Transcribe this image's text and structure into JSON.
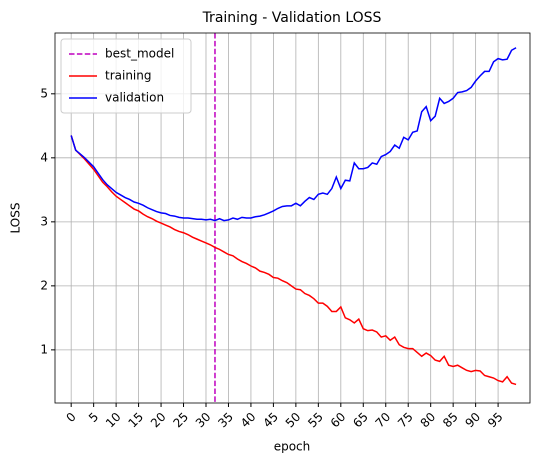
{
  "chart_data": {
    "type": "line",
    "title": "Training - Validation LOSS",
    "xlabel": "epoch",
    "ylabel": "LOSS",
    "x": [
      0,
      1,
      2,
      3,
      4,
      5,
      6,
      7,
      8,
      9,
      10,
      11,
      12,
      13,
      14,
      15,
      16,
      17,
      18,
      19,
      20,
      21,
      22,
      23,
      24,
      25,
      26,
      27,
      28,
      29,
      30,
      31,
      32,
      33,
      34,
      35,
      36,
      37,
      38,
      39,
      40,
      41,
      42,
      43,
      44,
      45,
      46,
      47,
      48,
      49,
      50,
      51,
      52,
      53,
      54,
      55,
      56,
      57,
      58,
      59,
      60,
      61,
      62,
      63,
      64,
      65,
      66,
      67,
      68,
      69,
      70,
      71,
      72,
      73,
      74,
      75,
      76,
      77,
      78,
      79,
      80,
      81,
      82,
      83,
      84,
      85,
      86,
      87,
      88,
      89,
      90,
      91,
      92,
      93,
      94,
      95,
      96,
      97,
      98,
      99
    ],
    "vlines": [
      {
        "name": "best_model",
        "x": 32,
        "color": "#bf00bf"
      }
    ],
    "series": [
      {
        "name": "training",
        "color": "#ff0000",
        "values": [
          4.35,
          4.12,
          4.05,
          3.98,
          3.9,
          3.82,
          3.72,
          3.62,
          3.55,
          3.47,
          3.4,
          3.35,
          3.3,
          3.25,
          3.2,
          3.17,
          3.12,
          3.08,
          3.05,
          3.01,
          2.98,
          2.95,
          2.92,
          2.88,
          2.85,
          2.83,
          2.8,
          2.76,
          2.73,
          2.7,
          2.67,
          2.64,
          2.6,
          2.57,
          2.53,
          2.49,
          2.47,
          2.42,
          2.38,
          2.35,
          2.31,
          2.28,
          2.23,
          2.21,
          2.18,
          2.13,
          2.12,
          2.08,
          2.05,
          2.0,
          1.95,
          1.94,
          1.88,
          1.85,
          1.8,
          1.73,
          1.73,
          1.68,
          1.6,
          1.6,
          1.67,
          1.5,
          1.47,
          1.42,
          1.48,
          1.33,
          1.3,
          1.31,
          1.28,
          1.2,
          1.22,
          1.15,
          1.2,
          1.08,
          1.04,
          1.02,
          1.02,
          0.96,
          0.9,
          0.95,
          0.91,
          0.84,
          0.82,
          0.9,
          0.76,
          0.74,
          0.76,
          0.72,
          0.68,
          0.66,
          0.68,
          0.67,
          0.6,
          0.58,
          0.56,
          0.52,
          0.5,
          0.58,
          0.48,
          0.46
        ]
      },
      {
        "name": "validation",
        "color": "#0000ff",
        "values": [
          4.35,
          4.12,
          4.06,
          4.0,
          3.93,
          3.86,
          3.76,
          3.66,
          3.58,
          3.52,
          3.46,
          3.42,
          3.38,
          3.35,
          3.31,
          3.29,
          3.26,
          3.22,
          3.19,
          3.16,
          3.14,
          3.13,
          3.1,
          3.09,
          3.07,
          3.06,
          3.06,
          3.05,
          3.04,
          3.04,
          3.03,
          3.04,
          3.02,
          3.05,
          3.02,
          3.03,
          3.06,
          3.04,
          3.07,
          3.06,
          3.06,
          3.08,
          3.09,
          3.11,
          3.14,
          3.17,
          3.21,
          3.24,
          3.25,
          3.25,
          3.29,
          3.25,
          3.32,
          3.38,
          3.35,
          3.43,
          3.45,
          3.43,
          3.52,
          3.7,
          3.52,
          3.65,
          3.64,
          3.92,
          3.83,
          3.83,
          3.85,
          3.92,
          3.9,
          4.02,
          4.05,
          4.1,
          4.2,
          4.15,
          4.32,
          4.28,
          4.4,
          4.42,
          4.72,
          4.8,
          4.58,
          4.65,
          4.93,
          4.85,
          4.88,
          4.93,
          5.02,
          5.03,
          5.05,
          5.1,
          5.2,
          5.28,
          5.35,
          5.35,
          5.5,
          5.55,
          5.53,
          5.54,
          5.68,
          5.72
        ]
      }
    ],
    "xlim": [
      -3.6,
      102.1
    ],
    "ylim": [
      0.17,
      5.95
    ],
    "xticks": [
      0,
      5,
      10,
      15,
      20,
      25,
      30,
      35,
      40,
      45,
      50,
      55,
      60,
      65,
      70,
      75,
      80,
      85,
      90,
      95
    ],
    "yticks": [
      1,
      2,
      3,
      4,
      5
    ],
    "grid": true,
    "legend": "upper left"
  }
}
